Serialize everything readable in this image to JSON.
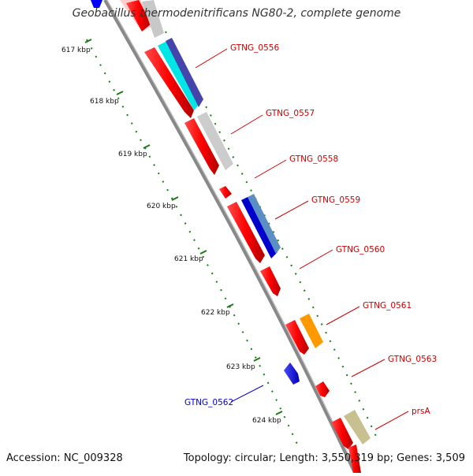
{
  "title": "Geobacillus thermodenitrificans NG80-2, complete genome",
  "footer": {
    "accession": "Accession: NC_009328",
    "topology": "Topology: circular; Length: 3,550,319 bp; Genes: 3,509"
  },
  "colors": {
    "forward_label": "#cc0000",
    "reverse_label": "#0000cc",
    "backbone": "#888888",
    "tick": "#1a7a1a",
    "cds_forward": "#ff0000",
    "cds_reverse": "#0000ff"
  },
  "scale_ticks": [
    {
      "label": "617 kbp",
      "kbp": 617
    },
    {
      "label": "618 kbp",
      "kbp": 618
    },
    {
      "label": "619 kbp",
      "kbp": 619
    },
    {
      "label": "620 kbp",
      "kbp": 620
    },
    {
      "label": "621 kbp",
      "kbp": 621
    },
    {
      "label": "622 kbp",
      "kbp": 622
    },
    {
      "label": "623 kbp",
      "kbp": 623
    },
    {
      "label": "624 kbp",
      "kbp": 624
    }
  ],
  "gene_labels": [
    {
      "name": "GTNG_0556",
      "strand": "forward"
    },
    {
      "name": "GTNG_0557",
      "strand": "forward"
    },
    {
      "name": "GTNG_0558",
      "strand": "forward"
    },
    {
      "name": "GTNG_0559",
      "strand": "forward"
    },
    {
      "name": "GTNG_0560",
      "strand": "forward"
    },
    {
      "name": "GTNG_0561",
      "strand": "forward"
    },
    {
      "name": "GTNG_0563",
      "strand": "forward"
    },
    {
      "name": "prsA",
      "strand": "forward"
    },
    {
      "name": "GTNG_0562",
      "strand": "reverse"
    }
  ]
}
